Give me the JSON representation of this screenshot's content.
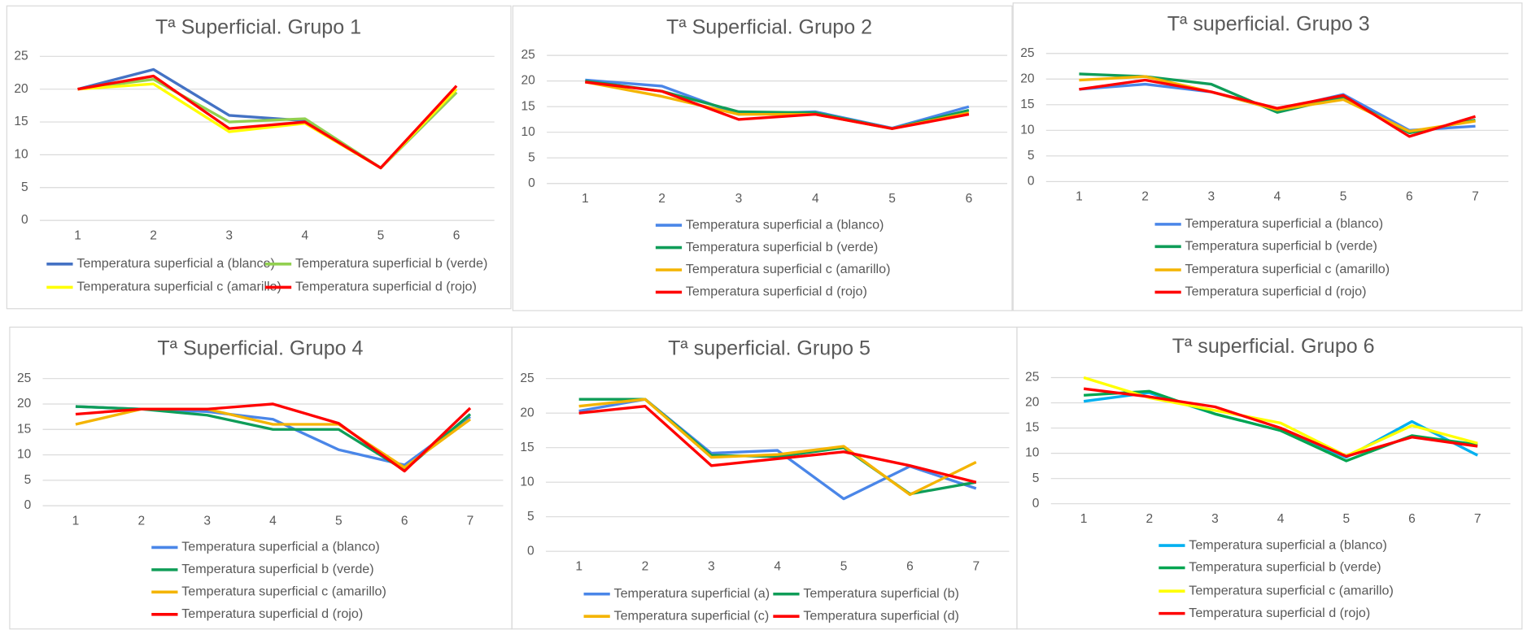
{
  "chart_data": [
    {
      "type": "line",
      "title": "Tª Superficial. Grupo 1",
      "categories": [
        1,
        2,
        3,
        4,
        5,
        6
      ],
      "ylim": [
        0,
        25
      ],
      "yticks": [
        0,
        5,
        10,
        15,
        20,
        25
      ],
      "grid": true,
      "series": [
        {
          "name": "Temperatura superficial a (blanco)",
          "color": "#4472c4",
          "values": [
            20,
            23,
            16,
            15.2,
            8,
            19.5
          ]
        },
        {
          "name": "Temperatura superficial b (verde)",
          "color": "#92d050",
          "values": [
            20,
            21.5,
            15,
            15.5,
            8,
            19.5
          ]
        },
        {
          "name": "Temperatura superficial c (amarillo)",
          "color": "#ffff00",
          "values": [
            20,
            20.8,
            13.5,
            14.8,
            8,
            20
          ]
        },
        {
          "name": "Temperatura superficial d (rojo)",
          "color": "#ff0000",
          "values": [
            20,
            22,
            14,
            15,
            8,
            20.5
          ]
        }
      ]
    },
    {
      "type": "line",
      "title": "Tª Superficial. Grupo 2",
      "categories": [
        1,
        2,
        3,
        4,
        5,
        6
      ],
      "ylim": [
        0,
        25
      ],
      "yticks": [
        0,
        5,
        10,
        15,
        20,
        25
      ],
      "grid": true,
      "series": [
        {
          "name": "Temperatura superficial a (blanco)",
          "color": "#4a86e8",
          "values": [
            20.2,
            19,
            13.5,
            14,
            10.8,
            15
          ]
        },
        {
          "name": "Temperatura superficial b (verde)",
          "color": "#0f9d58",
          "values": [
            20,
            18,
            14,
            13.8,
            10.7,
            14.3
          ]
        },
        {
          "name": "Temperatura superficial c (amarillo)",
          "color": "#f4b400",
          "values": [
            19.8,
            17,
            13.5,
            13.5,
            10.7,
            13.8
          ]
        },
        {
          "name": "Temperatura superficial d (rojo)",
          "color": "#ff0000",
          "values": [
            19.8,
            18,
            12.5,
            13.5,
            10.7,
            13.5
          ]
        }
      ]
    },
    {
      "type": "line",
      "title": "Tª superficial. Grupo 3",
      "categories": [
        1,
        2,
        3,
        4,
        5,
        6,
        7
      ],
      "ylim": [
        0,
        25
      ],
      "yticks": [
        0,
        5,
        10,
        15,
        20,
        25
      ],
      "grid": true,
      "series": [
        {
          "name": "Temperatura superficial a (blanco)",
          "color": "#4a86e8",
          "values": [
            18,
            19,
            17.5,
            14,
            17,
            10,
            10.8
          ]
        },
        {
          "name": "Temperatura superficial b (verde)",
          "color": "#0f9d58",
          "values": [
            21,
            20.5,
            19,
            13.5,
            16.5,
            9.5,
            12
          ]
        },
        {
          "name": "Temperatura superficial c (amarillo)",
          "color": "#f4b400",
          "values": [
            19.8,
            20.5,
            17.5,
            14,
            16,
            9.8,
            11.8
          ]
        },
        {
          "name": "Temperatura superficial d (rojo)",
          "color": "#ff0000",
          "values": [
            18,
            19.8,
            17.5,
            14.3,
            16.8,
            8.8,
            12.7
          ]
        }
      ]
    },
    {
      "type": "line",
      "title": "Tª Superficial. Grupo 4",
      "categories": [
        1,
        2,
        3,
        4,
        5,
        6,
        7
      ],
      "ylim": [
        0,
        25
      ],
      "yticks": [
        0,
        5,
        10,
        15,
        20,
        25
      ],
      "grid": true,
      "series": [
        {
          "name": "Temperatura superficial a (blanco)",
          "color": "#4a86e8",
          "values": [
            19.5,
            19,
            18.5,
            17,
            11,
            8,
            17.5
          ]
        },
        {
          "name": "Temperatura superficial b (verde)",
          "color": "#0f9d58",
          "values": [
            19.5,
            19,
            17.8,
            15,
            15,
            7,
            18
          ]
        },
        {
          "name": "Temperatura superficial c (amarillo)",
          "color": "#f4b400",
          "values": [
            16,
            19,
            19,
            16,
            16,
            7.5,
            17
          ]
        },
        {
          "name": "Temperatura superficial d (rojo)",
          "color": "#ff0000",
          "values": [
            18,
            19,
            19,
            20,
            16.2,
            6.8,
            19.2
          ]
        }
      ]
    },
    {
      "type": "line",
      "title": "Tª superficial. Grupo 5",
      "categories": [
        1,
        2,
        3,
        4,
        5,
        6,
        7
      ],
      "ylim": [
        0,
        25
      ],
      "yticks": [
        0,
        5,
        10,
        15,
        20,
        25
      ],
      "grid": true,
      "series": [
        {
          "name": "Temperatura superficial (a)",
          "color": "#4a86e8",
          "values": [
            20.3,
            22,
            14.2,
            14.6,
            7.6,
            12.3,
            9.1
          ]
        },
        {
          "name": "Temperatura superficial (b)",
          "color": "#0f9d58",
          "values": [
            22,
            22,
            13.9,
            13.7,
            15,
            8.3,
            10
          ]
        },
        {
          "name": "Temperatura superficial (c)",
          "color": "#f4b400",
          "values": [
            21,
            22,
            13.6,
            14,
            15.2,
            8.2,
            12.9
          ]
        },
        {
          "name": "Temperatura superficial (d)",
          "color": "#ff0000",
          "values": [
            20,
            21,
            12.4,
            13.4,
            14.4,
            12.4,
            10
          ]
        }
      ]
    },
    {
      "type": "line",
      "title": "Tª superficial. Grupo 6",
      "categories": [
        1,
        2,
        3,
        4,
        5,
        6,
        7
      ],
      "ylim": [
        0,
        25
      ],
      "yticks": [
        0,
        5,
        10,
        15,
        20,
        25
      ],
      "grid": true,
      "series": [
        {
          "name": "Temperatura superficial a (blanco)",
          "color": "#00b0f0",
          "values": [
            20.3,
            22,
            17.8,
            14.5,
            9.2,
            16.3,
            9.6
          ]
        },
        {
          "name": "Temperatura superficial b (verde)",
          "color": "#00a550",
          "values": [
            21.5,
            22.3,
            17.8,
            14.5,
            8.5,
            13.5,
            11.7
          ]
        },
        {
          "name": "Temperatura superficial c (amarillo)",
          "color": "#ffff00",
          "values": [
            25,
            21,
            18.5,
            16,
            9.5,
            15.5,
            12
          ]
        },
        {
          "name": "Temperatura superficial d (rojo)",
          "color": "#ff0000",
          "values": [
            22.8,
            21.2,
            19.2,
            15,
            9.4,
            13.2,
            11.4
          ]
        }
      ]
    }
  ]
}
